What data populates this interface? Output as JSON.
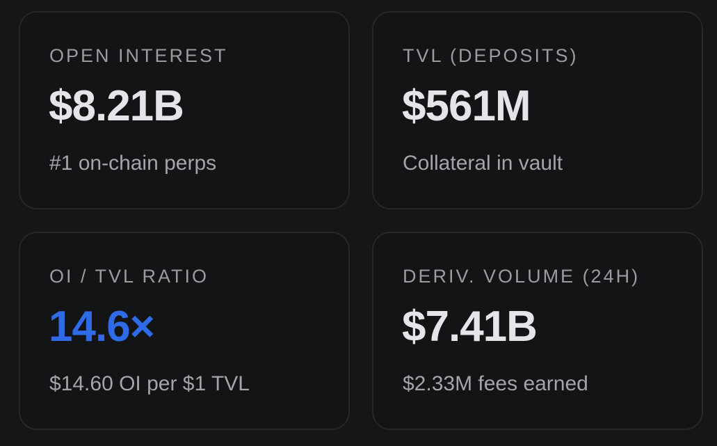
{
  "cards": [
    {
      "label": "OPEN INTEREST",
      "value": "$8.21B",
      "subtext": "#1 on-chain perps"
    },
    {
      "label": "TVL (DEPOSITS)",
      "value": "$561M",
      "subtext": "Collateral in vault"
    },
    {
      "label": "OI / TVL RATIO",
      "value": "14.6×",
      "subtext": "$14.60 OI per $1 TVL",
      "value_color": "#2f6be6"
    },
    {
      "label": "DERIV. VOLUME (24H)",
      "value": "$7.41B",
      "subtext": "$2.33M fees earned"
    }
  ],
  "colors": {
    "background": "#151618",
    "card_background": "#131416",
    "card_border": "#25272b",
    "label": "#9a9ca1",
    "value": "#e3e5e9",
    "subtext": "#a3a5aa",
    "accent": "#2f6be6"
  }
}
